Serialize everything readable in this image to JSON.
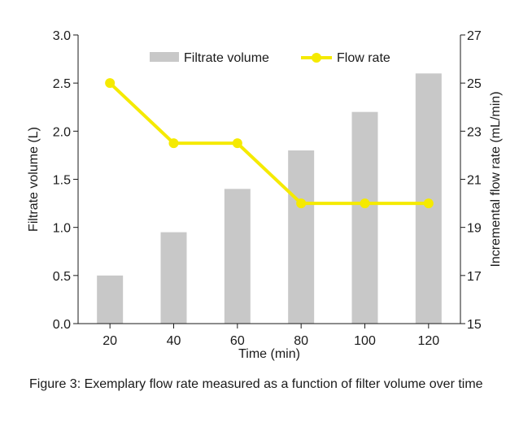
{
  "chart_data": {
    "type": "bar+line",
    "categories": [
      "20",
      "40",
      "60",
      "80",
      "100",
      "120"
    ],
    "series": [
      {
        "name": "Filtrate volume",
        "type": "bar",
        "axis": "left",
        "color": "#c8c8c8",
        "values": [
          0.5,
          0.95,
          1.4,
          1.8,
          2.2,
          2.6
        ]
      },
      {
        "name": "Flow rate",
        "type": "line",
        "axis": "right",
        "color": "#f5ea00",
        "values": [
          25,
          22.5,
          22.5,
          20,
          20,
          20
        ]
      }
    ],
    "xlabel": "Time (min)",
    "ylabel_left": "Filtrate volume (L)",
    "ylabel_right": "Incremental flow rate (mL/min)",
    "ylim_left": [
      0,
      3.0
    ],
    "ylim_right": [
      15,
      27
    ],
    "yticks_left": [
      "0.0",
      "0.5",
      "1.0",
      "1.5",
      "2.0",
      "2.5",
      "3.0"
    ],
    "yticks_right": [
      "15",
      "17",
      "19",
      "21",
      "23",
      "25",
      "27"
    ],
    "legend_position": "top-center",
    "grid": false
  },
  "caption": "Figure 3: Exemplary flow rate measured as a function of filter volume over time"
}
